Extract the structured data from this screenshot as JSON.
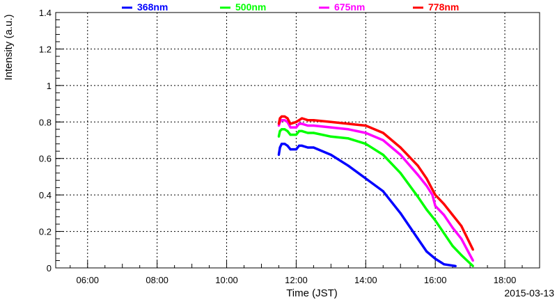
{
  "chart_data": {
    "type": "line",
    "title": "",
    "xlabel": "Time (JST)",
    "ylabel": "Intensity (a.u.)",
    "date": "2015-03-13",
    "xlim": [
      "05:05",
      "19:00"
    ],
    "ylim": [
      0,
      1.4
    ],
    "x_ticks": [
      "06:00",
      "08:00",
      "10:00",
      "12:00",
      "14:00",
      "16:00",
      "18:00"
    ],
    "y_ticks": [
      "0",
      "0.2",
      "0.4",
      "0.6",
      "0.8",
      "1",
      "1.2",
      "1.4"
    ],
    "grid": true,
    "legend_position": "top",
    "series": [
      {
        "name": "368nm",
        "color": "#0000ff",
        "x": [
          "11:30",
          "11:32",
          "11:35",
          "11:40",
          "11:45",
          "11:50",
          "12:00",
          "12:05",
          "12:10",
          "12:20",
          "12:30",
          "13:00",
          "13:30",
          "14:00",
          "14:30",
          "15:00",
          "15:30",
          "15:45",
          "16:00",
          "16:15",
          "16:35"
        ],
        "values": [
          0.62,
          0.66,
          0.68,
          0.68,
          0.67,
          0.65,
          0.65,
          0.67,
          0.67,
          0.66,
          0.66,
          0.62,
          0.56,
          0.49,
          0.42,
          0.3,
          0.16,
          0.09,
          0.05,
          0.02,
          0.01
        ]
      },
      {
        "name": "500nm",
        "color": "#00ff00",
        "x": [
          "11:30",
          "11:32",
          "11:35",
          "11:40",
          "11:45",
          "11:50",
          "12:00",
          "12:05",
          "12:10",
          "12:20",
          "12:30",
          "13:00",
          "13:30",
          "14:00",
          "14:30",
          "15:00",
          "15:30",
          "15:45",
          "16:00",
          "16:15",
          "16:30",
          "16:45",
          "17:05"
        ],
        "values": [
          0.72,
          0.75,
          0.76,
          0.76,
          0.75,
          0.73,
          0.73,
          0.75,
          0.75,
          0.74,
          0.74,
          0.72,
          0.71,
          0.68,
          0.62,
          0.52,
          0.39,
          0.32,
          0.26,
          0.19,
          0.12,
          0.07,
          0.01
        ]
      },
      {
        "name": "675nm",
        "color": "#ff00ff",
        "x": [
          "11:30",
          "11:32",
          "11:35",
          "11:40",
          "11:45",
          "11:50",
          "12:00",
          "12:05",
          "12:10",
          "12:20",
          "12:30",
          "13:00",
          "13:30",
          "14:00",
          "14:30",
          "15:00",
          "15:30",
          "15:45",
          "15:55",
          "16:00",
          "16:15",
          "16:30",
          "16:45",
          "17:05"
        ],
        "values": [
          0.78,
          0.8,
          0.81,
          0.81,
          0.8,
          0.77,
          0.77,
          0.79,
          0.79,
          0.78,
          0.78,
          0.77,
          0.76,
          0.74,
          0.7,
          0.62,
          0.51,
          0.45,
          0.4,
          0.34,
          0.29,
          0.22,
          0.16,
          0.04
        ]
      },
      {
        "name": "778nm",
        "color": "#ff0000",
        "x": [
          "11:30",
          "11:32",
          "11:35",
          "11:40",
          "11:45",
          "11:50",
          "12:00",
          "12:05",
          "12:10",
          "12:20",
          "12:30",
          "13:00",
          "13:30",
          "14:00",
          "14:30",
          "15:00",
          "15:30",
          "15:45",
          "15:55",
          "16:00",
          "16:15",
          "16:30",
          "16:45",
          "17:05"
        ],
        "values": [
          0.79,
          0.82,
          0.83,
          0.83,
          0.82,
          0.79,
          0.8,
          0.81,
          0.82,
          0.81,
          0.81,
          0.8,
          0.79,
          0.78,
          0.74,
          0.66,
          0.56,
          0.49,
          0.43,
          0.4,
          0.35,
          0.29,
          0.23,
          0.1
        ]
      }
    ]
  }
}
